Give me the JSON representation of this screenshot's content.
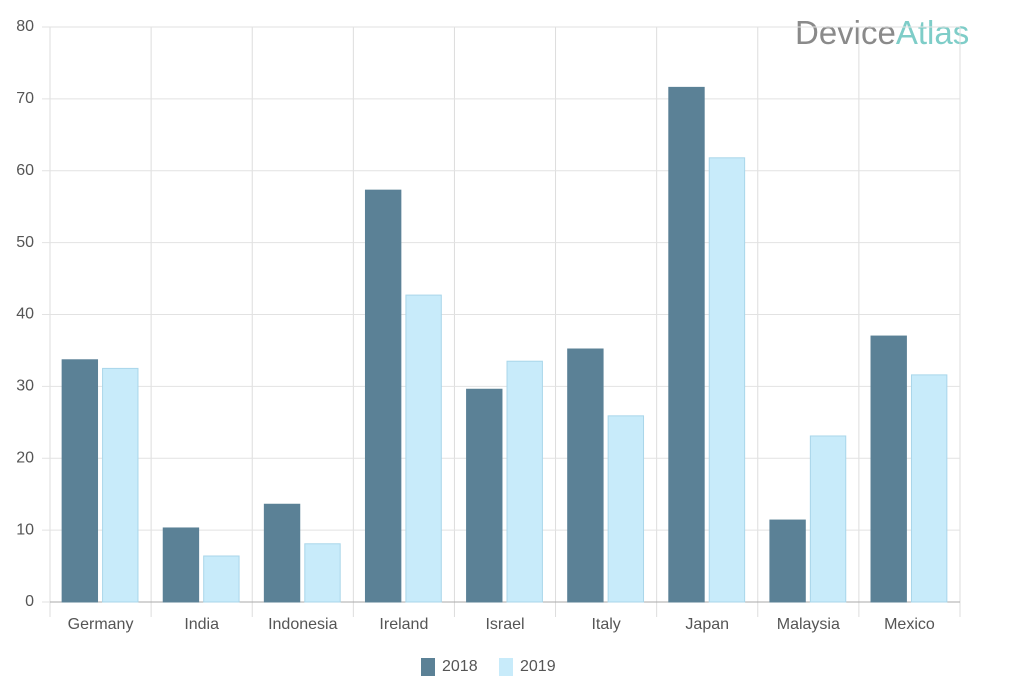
{
  "logo": {
    "part1": "Device",
    "part2": "Atlas"
  },
  "chart_data": {
    "type": "bar",
    "categories": [
      "Germany",
      "India",
      "Indonesia",
      "Ireland",
      "Israel",
      "Italy",
      "Japan",
      "Malaysia",
      "Mexico"
    ],
    "series": [
      {
        "name": "2018",
        "color": "#5b8196",
        "values": [
          33.7,
          10.3,
          13.6,
          57.3,
          29.6,
          35.2,
          71.6,
          11.4,
          37.0
        ]
      },
      {
        "name": "2019",
        "color": "#c8ebfa",
        "values": [
          32.5,
          6.4,
          8.1,
          42.7,
          33.5,
          25.9,
          61.8,
          23.1,
          31.6
        ]
      }
    ],
    "ylim": [
      0,
      80
    ],
    "yticks": [
      0,
      10,
      20,
      30,
      40,
      50,
      60,
      70,
      80
    ],
    "grid": true,
    "legend": "bottom"
  }
}
